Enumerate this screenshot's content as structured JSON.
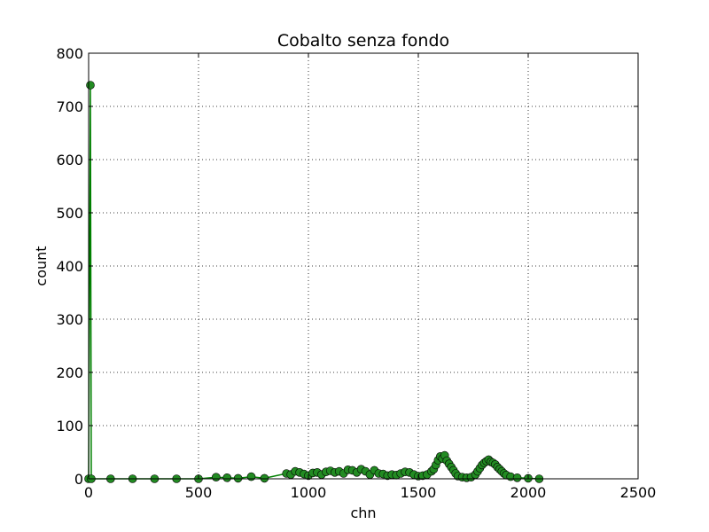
{
  "chart_data": {
    "type": "scatter",
    "title": "Cobalto senza fondo",
    "xlabel": "chn",
    "ylabel": "count",
    "xlim": [
      0,
      2500
    ],
    "ylim": [
      0,
      800
    ],
    "xticks": [
      0,
      500,
      1000,
      1500,
      2000,
      2500
    ],
    "yticks": [
      0,
      100,
      200,
      300,
      400,
      500,
      600,
      700,
      800
    ],
    "xtick_labels": [
      "0",
      "500",
      "1000",
      "1500",
      "2000",
      "2500"
    ],
    "ytick_labels": [
      "0",
      "100",
      "200",
      "300",
      "400",
      "500",
      "600",
      "700",
      "800"
    ],
    "grid": true,
    "line_color": "#008000",
    "marker_color": "#228b22",
    "series": [
      {
        "x": [
          0,
          8,
          12,
          100,
          200,
          300,
          400,
          500,
          580,
          630,
          680,
          740,
          800,
          900,
          920,
          940,
          960,
          980,
          1000,
          1020,
          1040,
          1060,
          1080,
          1100,
          1120,
          1140,
          1160,
          1180,
          1200,
          1220,
          1240,
          1260,
          1280,
          1300,
          1320,
          1340,
          1360,
          1380,
          1400,
          1420,
          1440,
          1460,
          1480,
          1500,
          1520,
          1540,
          1560,
          1570,
          1580,
          1590,
          1600,
          1610,
          1620,
          1630,
          1640,
          1650,
          1660,
          1670,
          1680,
          1700,
          1720,
          1740,
          1760,
          1770,
          1780,
          1790,
          1800,
          1810,
          1820,
          1830,
          1840,
          1850,
          1860,
          1870,
          1880,
          1890,
          1900,
          1920,
          1950,
          2000,
          2050
        ],
        "y": [
          0,
          740,
          0,
          0,
          0,
          0,
          0,
          0,
          3,
          2,
          1,
          4,
          1,
          10,
          8,
          14,
          12,
          9,
          6,
          11,
          12,
          8,
          13,
          15,
          12,
          14,
          10,
          17,
          16,
          12,
          18,
          14,
          8,
          16,
          10,
          9,
          6,
          8,
          7,
          10,
          13,
          12,
          8,
          5,
          6,
          8,
          14,
          18,
          26,
          35,
          42,
          38,
          44,
          34,
          28,
          22,
          16,
          10,
          5,
          3,
          2,
          3,
          8,
          14,
          20,
          26,
          30,
          33,
          36,
          32,
          30,
          27,
          22,
          18,
          14,
          10,
          7,
          4,
          2,
          1,
          0
        ]
      }
    ]
  }
}
